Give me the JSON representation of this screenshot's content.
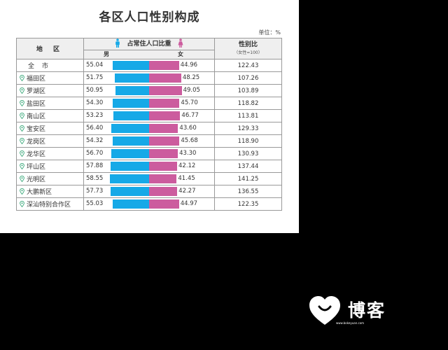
{
  "title": "各区人口性别构成",
  "unit": "单位：%",
  "headers": {
    "region": "地 区",
    "share": "占常住人口比重",
    "male": "男",
    "female": "女",
    "ratio": "性别比",
    "ratio_note": "（女性=100）"
  },
  "rows": [
    {
      "region": "全 市",
      "male": "55.04",
      "female": "44.96",
      "ratio": "122.43",
      "male_share": 55.04,
      "female_share": 44.96
    },
    {
      "region": "福田区",
      "male": "51.75",
      "female": "48.25",
      "ratio": "107.26",
      "male_share": 51.75,
      "female_share": 48.25
    },
    {
      "region": "罗湖区",
      "male": "50.95",
      "female": "49.05",
      "ratio": "103.89",
      "male_share": 50.95,
      "female_share": 49.05
    },
    {
      "region": "盐田区",
      "male": "54.30",
      "female": "45.70",
      "ratio": "118.82",
      "male_share": 54.3,
      "female_share": 45.7
    },
    {
      "region": "南山区",
      "male": "53.23",
      "female": "46.77",
      "ratio": "113.81",
      "male_share": 53.23,
      "female_share": 46.77
    },
    {
      "region": "宝安区",
      "male": "56.40",
      "female": "43.60",
      "ratio": "129.33",
      "male_share": 56.4,
      "female_share": 43.6
    },
    {
      "region": "龙岗区",
      "male": "54.32",
      "female": "45.68",
      "ratio": "118.90",
      "male_share": 54.32,
      "female_share": 45.68
    },
    {
      "region": "龙华区",
      "male": "56.70",
      "female": "43.30",
      "ratio": "130.93",
      "male_share": 56.7,
      "female_share": 43.3
    },
    {
      "region": "坪山区",
      "male": "57.88",
      "female": "42.12",
      "ratio": "137.44",
      "male_share": 57.88,
      "female_share": 42.12
    },
    {
      "region": "光明区",
      "male": "58.55",
      "female": "41.45",
      "ratio": "141.25",
      "male_share": 58.55,
      "female_share": 41.45
    },
    {
      "region": "大鹏新区",
      "male": "57.73",
      "female": "42.27",
      "ratio": "136.55",
      "male_share": 57.73,
      "female_share": 42.27
    },
    {
      "region": "深汕特别合作区",
      "male": "55.03",
      "female": "44.97",
      "ratio": "122.35",
      "male_share": 55.03,
      "female_share": 44.97
    }
  ],
  "colors": {
    "male": "#16a9e7",
    "female": "#cc5c9e"
  },
  "icons": {
    "region": "location-pin-icon",
    "male": "male-figure-icon",
    "female": "female-figure-icon"
  },
  "watermark": {
    "text": "博客",
    "url": "www.bokeyuan.com"
  }
}
